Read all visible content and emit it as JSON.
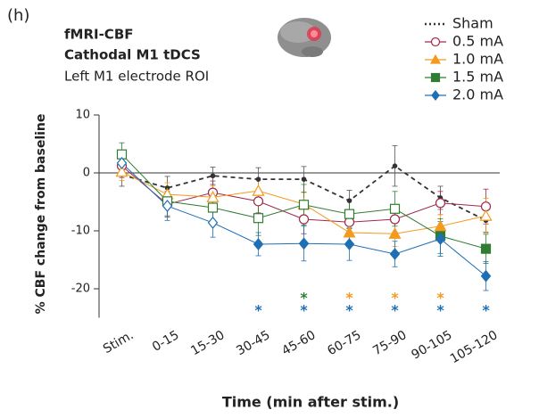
{
  "chart_data": {
    "type": "line",
    "panel_label": "(h)",
    "title_lines": [
      "fMRI-CBF",
      "Cathodal M1 tDCS",
      "Left M1 electrode ROI"
    ],
    "y_label": "% CBF change from baseline",
    "x_label": "Time (min after stim.)",
    "categories": [
      "Stim.",
      "0-15",
      "15-30",
      "30-45",
      "45-60",
      "60-75",
      "75-90",
      "90-105",
      "105-120"
    ],
    "ylim": [
      -25,
      10
    ],
    "yticks": [
      -20,
      -10,
      0,
      10
    ],
    "series": [
      {
        "name": "Sham",
        "color": "#333333",
        "marker": "dot",
        "line_style": "dotted-dashed",
        "values": [
          -0.3,
          -2.6,
          -0.5,
          -1.1,
          -1.1,
          -4.8,
          1.2,
          -4.3,
          -8.2
        ],
        "errors": [
          2.0,
          2.0,
          1.5,
          2.0,
          2.2,
          1.8,
          3.5,
          2.0,
          2.0
        ],
        "filled": [
          true,
          true,
          true,
          true,
          true,
          true,
          true,
          true,
          true
        ],
        "asterisks": [
          null,
          null,
          null,
          null,
          null,
          null,
          null,
          null,
          null
        ]
      },
      {
        "name": "0.5 mA",
        "color": "#a0294a",
        "marker": "circle",
        "line_style": "solid",
        "values": [
          1.2,
          -5.4,
          -3.4,
          -4.9,
          -8.0,
          -8.5,
          -8.0,
          -5.2,
          -5.8
        ],
        "errors": [
          2.0,
          2.2,
          2.0,
          2.0,
          2.5,
          2.2,
          2.2,
          2.0,
          3.0
        ],
        "filled": [
          false,
          false,
          false,
          false,
          false,
          false,
          false,
          false,
          false
        ],
        "asterisks": [
          null,
          null,
          null,
          null,
          null,
          null,
          null,
          null,
          null
        ]
      },
      {
        "name": "1.0 mA",
        "color": "#f39a1f",
        "marker": "triangle",
        "line_style": "solid",
        "values": [
          0.2,
          -3.7,
          -4.2,
          -3.1,
          -5.4,
          -10.3,
          -10.5,
          -9.2,
          -7.4
        ],
        "errors": [
          1.5,
          2.0,
          2.0,
          2.0,
          2.0,
          2.0,
          2.2,
          2.0,
          3.0
        ],
        "filled": [
          false,
          false,
          false,
          false,
          false,
          true,
          true,
          true,
          false
        ],
        "asterisks": [
          null,
          null,
          null,
          null,
          null,
          "*",
          "*",
          "*",
          null
        ]
      },
      {
        "name": "1.5 mA",
        "color": "#2e7d32",
        "marker": "square",
        "line_style": "solid",
        "values": [
          3.2,
          -4.9,
          -6.0,
          -7.8,
          -5.5,
          -7.1,
          -6.2,
          -10.9,
          -13.1
        ],
        "errors": [
          2.0,
          2.5,
          2.5,
          3.0,
          3.5,
          2.5,
          3.0,
          3.0,
          2.5
        ],
        "filled": [
          false,
          false,
          false,
          false,
          false,
          false,
          false,
          true,
          true
        ],
        "asterisks": [
          null,
          null,
          null,
          null,
          "*",
          null,
          null,
          null,
          null
        ]
      },
      {
        "name": "2.0 mA",
        "color": "#1f6fb5",
        "marker": "diamond",
        "line_style": "solid",
        "values": [
          1.7,
          -5.7,
          -8.6,
          -12.3,
          -12.2,
          -12.3,
          -14.0,
          -11.4,
          -17.8
        ],
        "errors": [
          2.0,
          2.5,
          2.5,
          2.0,
          3.0,
          2.8,
          2.2,
          3.0,
          2.5
        ],
        "filled": [
          false,
          false,
          false,
          true,
          true,
          true,
          true,
          true,
          true
        ],
        "asterisks": [
          null,
          null,
          null,
          "*",
          "*",
          "*",
          "*",
          "*",
          "*"
        ]
      }
    ]
  }
}
